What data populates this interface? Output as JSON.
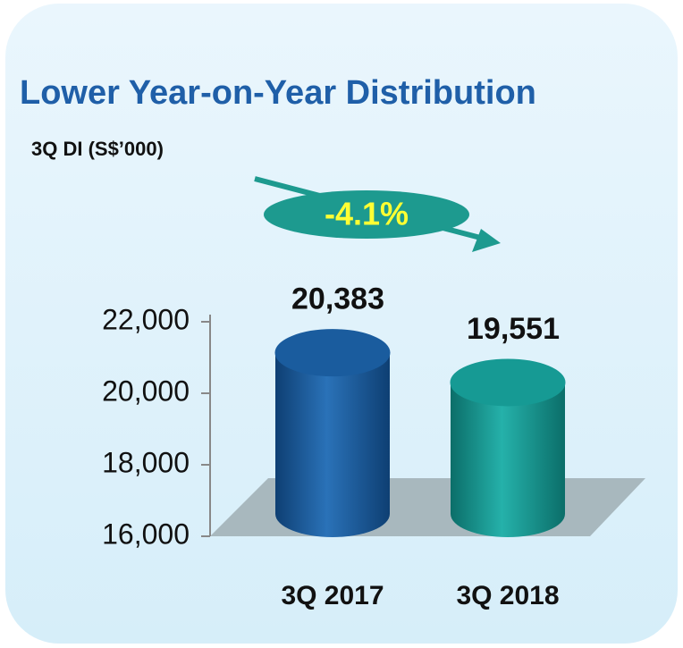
{
  "chart_data": {
    "type": "cylinder",
    "title": "Lower Year-on-Year Distribution",
    "subtitle": "3Q DI (S$’000)",
    "annotation": "-4.1%",
    "categories": [
      "3Q 2017",
      "3Q 2018"
    ],
    "values": [
      20383,
      19551
    ],
    "value_labels": [
      "20,383",
      "19,551"
    ],
    "colors": [
      "#1a5c9e",
      "#169a94"
    ],
    "ylim": [
      16000,
      22000
    ],
    "yticks": [
      {
        "value": 16000,
        "label": "16,000"
      },
      {
        "value": 18000,
        "label": "18,000"
      },
      {
        "value": 20000,
        "label": "20,000"
      },
      {
        "value": 22000,
        "label": "22,000"
      }
    ]
  }
}
